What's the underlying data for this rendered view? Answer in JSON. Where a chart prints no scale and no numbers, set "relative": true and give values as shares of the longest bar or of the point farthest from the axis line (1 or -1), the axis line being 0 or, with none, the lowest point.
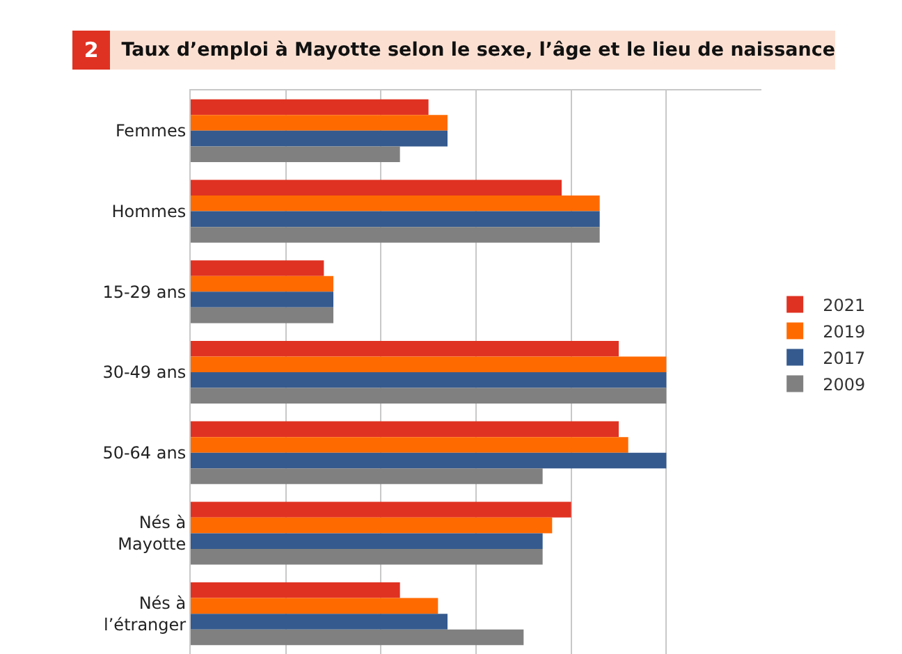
{
  "chart_data": {
    "type": "bar",
    "orientation": "horizontal",
    "relative": true,
    "title": "Taux d’emploi  à Mayotte selon le sexe, l’âge et le lieu de naissance",
    "annotations": [
      "2"
    ],
    "categories": [
      "Femmes",
      "Hommes",
      "15-29 ans",
      "30-49 ans",
      "50-64 ans",
      "Nés à Mayotte",
      "Nés à l’étranger"
    ],
    "series": [
      {
        "name": "2021",
        "color": "#e03222",
        "values": [
          0.5,
          0.78,
          0.28,
          0.9,
          0.9,
          0.8,
          0.44
        ]
      },
      {
        "name": "2019",
        "color": "#ff6a00",
        "values": [
          0.54,
          0.86,
          0.3,
          1,
          0.92,
          0.76,
          0.52
        ]
      },
      {
        "name": "2017",
        "color": "#355a8e",
        "values": [
          0.54,
          0.86,
          0.3,
          1,
          1,
          0.74,
          0.54
        ]
      },
      {
        "name": "2009",
        "color": "#808080",
        "values": [
          0.44,
          0.86,
          0.3,
          1,
          0.74,
          0.74,
          0.7
        ]
      }
    ],
    "grid": "x",
    "legend": "right"
  }
}
